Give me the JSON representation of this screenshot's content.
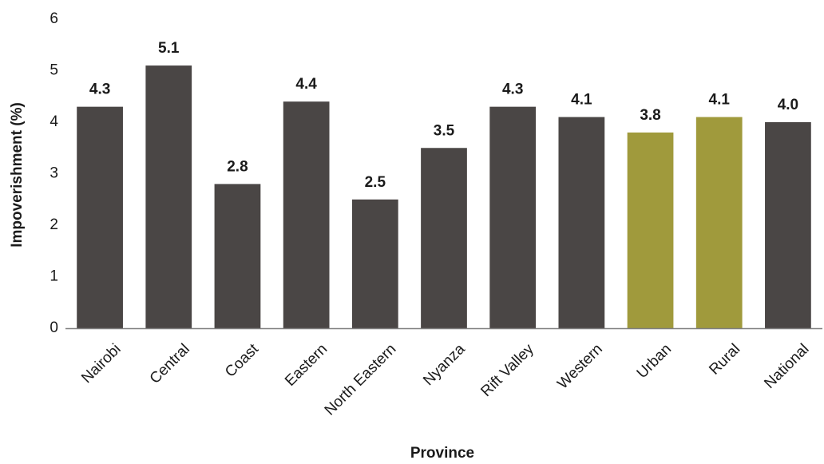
{
  "chart_data": {
    "type": "bar",
    "title": "",
    "xlabel": "Province",
    "ylabel": "Impoverishment (%)",
    "ylim": [
      0,
      6
    ],
    "yticks": [
      0,
      1,
      2,
      3,
      4,
      5,
      6
    ],
    "grid": false,
    "legend": "none",
    "categories": [
      "Nairobi",
      "Central",
      "Coast",
      "Eastern",
      "North Eastern",
      "Nyanza",
      "Rift Valley",
      "Western",
      "Urban",
      "Rural",
      "National"
    ],
    "values": [
      4.3,
      5.1,
      2.8,
      4.4,
      2.5,
      3.5,
      4.3,
      4.1,
      3.8,
      4.1,
      4.0
    ],
    "data_labels": [
      "4.3",
      "5.1",
      "2.8",
      "4.4",
      "2.5",
      "3.5",
      "4.3",
      "4.1",
      "3.8",
      "4.1",
      "4.0"
    ],
    "bar_colors": [
      "#4a4645",
      "#4a4645",
      "#4a4645",
      "#4a4645",
      "#4a4645",
      "#4a4645",
      "#4a4645",
      "#4a4645",
      "#a09a3c",
      "#a09a3c",
      "#4a4645"
    ],
    "axis_color": "#7f7f7f"
  }
}
